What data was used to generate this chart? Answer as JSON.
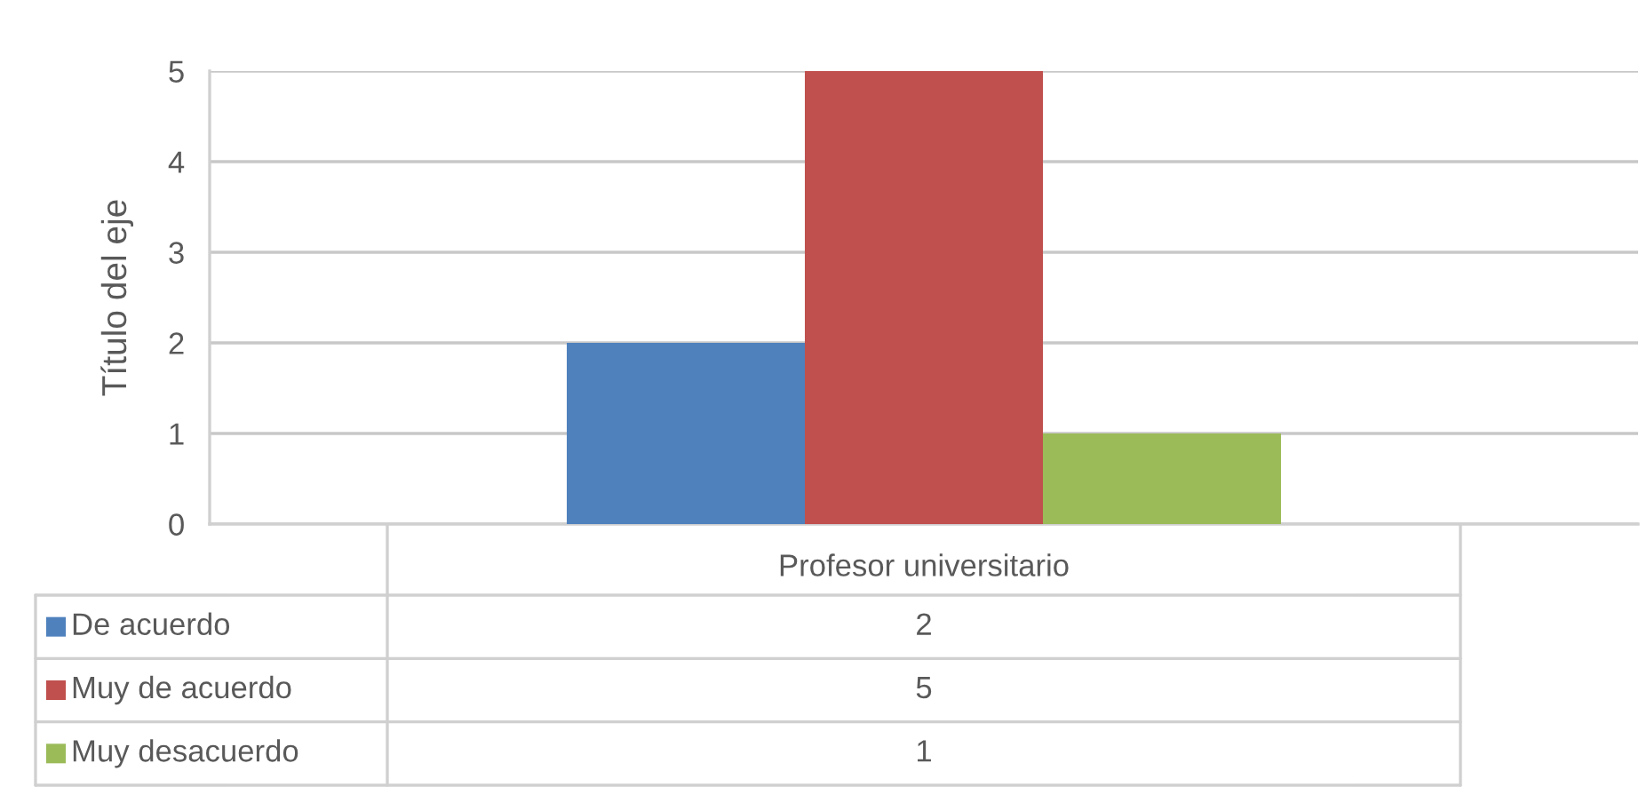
{
  "chart_data": {
    "type": "bar",
    "ylabel": "Título del eje",
    "categories": [
      "Profesor universitario"
    ],
    "series": [
      {
        "name": "De acuerdo",
        "color": "#4f81bd",
        "values": [
          2
        ]
      },
      {
        "name": "Muy de acuerdo",
        "color": "#c0504d",
        "values": [
          5
        ]
      },
      {
        "name": "Muy desacuerdo",
        "color": "#9bbb59",
        "values": [
          1
        ]
      }
    ],
    "ylim": [
      0,
      5
    ],
    "yticks": [
      0,
      1,
      2,
      3,
      4,
      5
    ],
    "grid": "y",
    "legend": "bottom",
    "annotations": [
      "2",
      "5",
      "1"
    ]
  }
}
